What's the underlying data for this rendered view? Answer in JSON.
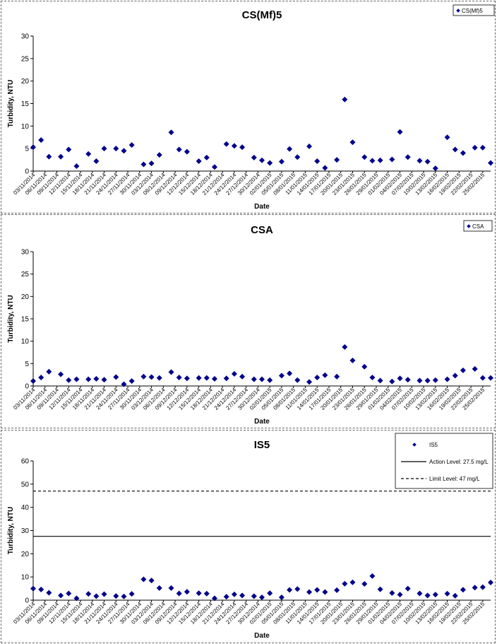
{
  "chart_data": [
    {
      "type": "scatter",
      "title": "CS(Mf)5",
      "xlabel": "Date",
      "ylabel": "Turbidity, NTU",
      "ylim": [
        0,
        30
      ],
      "yticks": [
        0,
        5,
        10,
        15,
        20,
        25,
        30
      ],
      "grid": false,
      "legend_position": "top-right",
      "x_range": [
        "03/11/2014",
        "27/02/2015"
      ],
      "x_ticks": [
        "03/11/2014",
        "06/11/2014",
        "09/11/2014",
        "12/11/2014",
        "15/11/2014",
        "18/11/2014",
        "21/11/2014",
        "24/11/2014",
        "27/11/2014",
        "30/11/2014",
        "03/12/2014",
        "06/12/2014",
        "09/12/2014",
        "12/12/2014",
        "15/12/2014",
        "18/12/2014",
        "21/12/2014",
        "24/12/2014",
        "27/12/2014",
        "30/12/2014",
        "02/01/2015",
        "05/01/2015",
        "08/01/2015",
        "11/01/2015",
        "14/01/2015",
        "17/01/2015",
        "20/01/2015",
        "23/01/2015",
        "26/01/2015",
        "29/01/2015",
        "01/02/2015",
        "04/02/2015",
        "07/02/2015",
        "10/02/2015",
        "13/02/2015",
        "16/02/2015",
        "19/02/2015",
        "22/02/2015",
        "25/02/2015"
      ],
      "series": [
        {
          "name": "CS(Mf)5",
          "color": "#00008b",
          "marker": "diamond",
          "points": [
            {
              "x": "03/11/2014",
              "y": 5.3
            },
            {
              "x": "05/11/2014",
              "y": 6.9
            },
            {
              "x": "07/11/2014",
              "y": 3.2
            },
            {
              "x": "10/11/2014",
              "y": 3.2
            },
            {
              "x": "12/11/2014",
              "y": 4.8
            },
            {
              "x": "14/11/2014",
              "y": 1.1
            },
            {
              "x": "17/11/2014",
              "y": 3.8
            },
            {
              "x": "19/11/2014",
              "y": 2.2
            },
            {
              "x": "21/11/2014",
              "y": 5.0
            },
            {
              "x": "24/11/2014",
              "y": 5.0
            },
            {
              "x": "26/11/2014",
              "y": 4.5
            },
            {
              "x": "28/11/2014",
              "y": 5.8
            },
            {
              "x": "01/12/2014",
              "y": 1.5
            },
            {
              "x": "03/12/2014",
              "y": 1.7
            },
            {
              "x": "05/12/2014",
              "y": 3.6
            },
            {
              "x": "08/12/2014",
              "y": 8.6
            },
            {
              "x": "10/12/2014",
              "y": 4.8
            },
            {
              "x": "12/12/2014",
              "y": 4.3
            },
            {
              "x": "15/12/2014",
              "y": 2.2
            },
            {
              "x": "17/12/2014",
              "y": 3.0
            },
            {
              "x": "19/12/2014",
              "y": 0.9
            },
            {
              "x": "22/12/2014",
              "y": 6.0
            },
            {
              "x": "24/12/2014",
              "y": 5.6
            },
            {
              "x": "26/12/2014",
              "y": 5.3
            },
            {
              "x": "29/12/2014",
              "y": 3.0
            },
            {
              "x": "31/12/2014",
              "y": 2.4
            },
            {
              "x": "02/01/2015",
              "y": 1.8
            },
            {
              "x": "05/01/2015",
              "y": 2.1
            },
            {
              "x": "07/01/2015",
              "y": 4.9
            },
            {
              "x": "09/01/2015",
              "y": 3.1
            },
            {
              "x": "12/01/2015",
              "y": 5.5
            },
            {
              "x": "14/01/2015",
              "y": 2.2
            },
            {
              "x": "16/01/2015",
              "y": 0.7
            },
            {
              "x": "19/01/2015",
              "y": 2.5
            },
            {
              "x": "21/01/2015",
              "y": 15.9
            },
            {
              "x": "23/01/2015",
              "y": 6.4
            },
            {
              "x": "26/01/2015",
              "y": 3.1
            },
            {
              "x": "28/01/2015",
              "y": 2.3
            },
            {
              "x": "30/01/2015",
              "y": 2.4
            },
            {
              "x": "02/02/2015",
              "y": 2.6
            },
            {
              "x": "04/02/2015",
              "y": 8.7
            },
            {
              "x": "06/02/2015",
              "y": 3.1
            },
            {
              "x": "09/02/2015",
              "y": 2.3
            },
            {
              "x": "11/02/2015",
              "y": 2.1
            },
            {
              "x": "13/02/2015",
              "y": 0.6
            },
            {
              "x": "16/02/2015",
              "y": 7.5
            },
            {
              "x": "18/02/2015",
              "y": 4.8
            },
            {
              "x": "20/02/2015",
              "y": 4.0
            },
            {
              "x": "23/02/2015",
              "y": 5.2
            },
            {
              "x": "25/02/2015",
              "y": 5.2
            },
            {
              "x": "27/02/2015",
              "y": 1.8
            }
          ]
        }
      ]
    },
    {
      "type": "scatter",
      "title": "CSA",
      "xlabel": "Date",
      "ylabel": "Turbidity, NTU",
      "ylim": [
        0,
        30
      ],
      "yticks": [
        0,
        5,
        10,
        15,
        20,
        25,
        30
      ],
      "grid": false,
      "legend_position": "top-right",
      "x_range": [
        "03/11/2014",
        "27/02/2015"
      ],
      "x_ticks": [
        "03/11/2014",
        "06/11/2014",
        "09/11/2014",
        "12/11/2014",
        "15/11/2014",
        "18/11/2014",
        "21/11/2014",
        "24/11/2014",
        "27/11/2014",
        "30/11/2014",
        "03/12/2014",
        "06/12/2014",
        "09/12/2014",
        "12/12/2014",
        "15/12/2014",
        "18/12/2014",
        "21/12/2014",
        "24/12/2014",
        "27/12/2014",
        "30/12/2014",
        "02/01/2015",
        "05/01/2015",
        "08/01/2015",
        "11/01/2015",
        "14/01/2015",
        "17/01/2015",
        "20/01/2015",
        "23/01/2015",
        "26/01/2015",
        "29/01/2015",
        "01/02/2015",
        "04/02/2015",
        "07/02/2015",
        "10/02/2015",
        "13/02/2015",
        "16/02/2015",
        "19/02/2015",
        "22/02/2015",
        "25/02/2015"
      ],
      "series": [
        {
          "name": "CSA",
          "color": "#00008b",
          "marker": "diamond",
          "points": [
            {
              "x": "03/11/2014",
              "y": 1.1
            },
            {
              "x": "05/11/2014",
              "y": 1.9
            },
            {
              "x": "07/11/2014",
              "y": 3.2
            },
            {
              "x": "10/11/2014",
              "y": 2.6
            },
            {
              "x": "12/11/2014",
              "y": 1.3
            },
            {
              "x": "14/11/2014",
              "y": 1.5
            },
            {
              "x": "17/11/2014",
              "y": 1.5
            },
            {
              "x": "19/11/2014",
              "y": 1.6
            },
            {
              "x": "21/11/2014",
              "y": 1.4
            },
            {
              "x": "24/11/2014",
              "y": 2.0
            },
            {
              "x": "26/11/2014",
              "y": 0.4
            },
            {
              "x": "28/11/2014",
              "y": 1.1
            },
            {
              "x": "01/12/2014",
              "y": 2.1
            },
            {
              "x": "03/12/2014",
              "y": 2.0
            },
            {
              "x": "05/12/2014",
              "y": 1.8
            },
            {
              "x": "08/12/2014",
              "y": 3.1
            },
            {
              "x": "10/12/2014",
              "y": 1.9
            },
            {
              "x": "12/12/2014",
              "y": 1.7
            },
            {
              "x": "15/12/2014",
              "y": 1.8
            },
            {
              "x": "17/12/2014",
              "y": 1.8
            },
            {
              "x": "19/12/2014",
              "y": 1.6
            },
            {
              "x": "22/12/2014",
              "y": 1.7
            },
            {
              "x": "24/12/2014",
              "y": 2.7
            },
            {
              "x": "26/12/2014",
              "y": 2.1
            },
            {
              "x": "29/12/2014",
              "y": 1.5
            },
            {
              "x": "31/12/2014",
              "y": 1.5
            },
            {
              "x": "02/01/2015",
              "y": 1.3
            },
            {
              "x": "05/01/2015",
              "y": 2.3
            },
            {
              "x": "07/01/2015",
              "y": 2.8
            },
            {
              "x": "09/01/2015",
              "y": 1.3
            },
            {
              "x": "12/01/2015",
              "y": 0.9
            },
            {
              "x": "14/01/2015",
              "y": 1.9
            },
            {
              "x": "16/01/2015",
              "y": 2.4
            },
            {
              "x": "19/01/2015",
              "y": 2.1
            },
            {
              "x": "21/01/2015",
              "y": 8.7
            },
            {
              "x": "23/01/2015",
              "y": 5.7
            },
            {
              "x": "26/01/2015",
              "y": 4.3
            },
            {
              "x": "28/01/2015",
              "y": 1.9
            },
            {
              "x": "30/01/2015",
              "y": 1.2
            },
            {
              "x": "02/02/2015",
              "y": 1.0
            },
            {
              "x": "04/02/2015",
              "y": 1.7
            },
            {
              "x": "06/02/2015",
              "y": 1.4
            },
            {
              "x": "09/02/2015",
              "y": 1.2
            },
            {
              "x": "11/02/2015",
              "y": 1.2
            },
            {
              "x": "13/02/2015",
              "y": 1.3
            },
            {
              "x": "16/02/2015",
              "y": 1.5
            },
            {
              "x": "18/02/2015",
              "y": 2.3
            },
            {
              "x": "20/02/2015",
              "y": 3.5
            },
            {
              "x": "23/02/2015",
              "y": 3.8
            },
            {
              "x": "25/02/2015",
              "y": 1.8
            },
            {
              "x": "27/02/2015",
              "y": 1.8
            }
          ]
        }
      ]
    },
    {
      "type": "scatter",
      "title": "IS5",
      "xlabel": "Date",
      "ylabel": "Turbidity, NTU",
      "ylim": [
        0,
        60
      ],
      "yticks": [
        0,
        10,
        20,
        30,
        40,
        50,
        60
      ],
      "grid": false,
      "legend_position": "top-right",
      "x_range": [
        "03/11/2014",
        "27/02/2015"
      ],
      "x_ticks": [
        "03/11/2014",
        "06/11/2014",
        "09/11/2014",
        "12/11/2014",
        "15/11/2014",
        "18/11/2014",
        "21/11/2014",
        "24/11/2014",
        "27/11/2014",
        "30/11/2014",
        "03/12/2014",
        "06/12/2014",
        "09/12/2014",
        "12/12/2014",
        "15/12/2014",
        "18/12/2014",
        "21/12/2014",
        "24/12/2014",
        "27/12/2014",
        "30/12/2014",
        "02/01/2015",
        "05/01/2015",
        "08/01/2015",
        "11/01/2015",
        "14/01/2015",
        "17/01/2015",
        "20/01/2015",
        "23/01/2015",
        "26/01/2015",
        "29/01/2015",
        "01/02/2015",
        "04/02/2015",
        "07/02/2015",
        "10/02/2015",
        "13/02/2015",
        "16/02/2015",
        "19/02/2015",
        "22/02/2015",
        "25/02/2015"
      ],
      "series": [
        {
          "name": "IS5",
          "color": "#00008b",
          "marker": "diamond",
          "points": [
            {
              "x": "03/11/2014",
              "y": 5.0
            },
            {
              "x": "05/11/2014",
              "y": 4.6
            },
            {
              "x": "07/11/2014",
              "y": 3.2
            },
            {
              "x": "10/11/2014",
              "y": 2.0
            },
            {
              "x": "12/11/2014",
              "y": 2.9
            },
            {
              "x": "14/11/2014",
              "y": 0.8
            },
            {
              "x": "17/11/2014",
              "y": 2.7
            },
            {
              "x": "19/11/2014",
              "y": 1.7
            },
            {
              "x": "21/11/2014",
              "y": 2.6
            },
            {
              "x": "24/11/2014",
              "y": 1.8
            },
            {
              "x": "26/11/2014",
              "y": 1.6
            },
            {
              "x": "28/11/2014",
              "y": 2.7
            },
            {
              "x": "01/12/2014",
              "y": 9.0
            },
            {
              "x": "03/12/2014",
              "y": 8.5
            },
            {
              "x": "05/12/2014",
              "y": 5.2
            },
            {
              "x": "08/12/2014",
              "y": 5.2
            },
            {
              "x": "10/12/2014",
              "y": 2.9
            },
            {
              "x": "12/12/2014",
              "y": 3.6
            },
            {
              "x": "15/12/2014",
              "y": 3.0
            },
            {
              "x": "17/12/2014",
              "y": 2.8
            },
            {
              "x": "19/12/2014",
              "y": 0.8
            },
            {
              "x": "22/12/2014",
              "y": 1.5
            },
            {
              "x": "24/12/2014",
              "y": 2.5
            },
            {
              "x": "26/12/2014",
              "y": 2.0
            },
            {
              "x": "29/12/2014",
              "y": 1.7
            },
            {
              "x": "31/12/2014",
              "y": 1.2
            },
            {
              "x": "02/01/2015",
              "y": 3.0
            },
            {
              "x": "05/01/2015",
              "y": 1.2
            },
            {
              "x": "07/01/2015",
              "y": 4.4
            },
            {
              "x": "09/01/2015",
              "y": 4.8
            },
            {
              "x": "12/01/2015",
              "y": 3.5
            },
            {
              "x": "14/01/2015",
              "y": 4.4
            },
            {
              "x": "16/01/2015",
              "y": 3.5
            },
            {
              "x": "19/01/2015",
              "y": 4.3
            },
            {
              "x": "21/01/2015",
              "y": 7.1
            },
            {
              "x": "23/01/2015",
              "y": 7.7
            },
            {
              "x": "26/01/2015",
              "y": 7.0
            },
            {
              "x": "28/01/2015",
              "y": 10.4
            },
            {
              "x": "30/01/2015",
              "y": 4.7
            },
            {
              "x": "02/02/2015",
              "y": 3.1
            },
            {
              "x": "04/02/2015",
              "y": 2.4
            },
            {
              "x": "06/02/2015",
              "y": 5.0
            },
            {
              "x": "09/02/2015",
              "y": 2.9
            },
            {
              "x": "11/02/2015",
              "y": 2.0
            },
            {
              "x": "13/02/2015",
              "y": 2.4
            },
            {
              "x": "16/02/2015",
              "y": 2.8
            },
            {
              "x": "18/02/2015",
              "y": 1.9
            },
            {
              "x": "20/02/2015",
              "y": 4.5
            },
            {
              "x": "23/02/2015",
              "y": 5.4
            },
            {
              "x": "25/02/2015",
              "y": 5.6
            },
            {
              "x": "27/02/2015",
              "y": 7.6
            }
          ]
        }
      ],
      "reference_lines": [
        {
          "name": "Action Level: 27.5 mg/L",
          "y": 27.5,
          "style": "solid",
          "color": "#000000"
        },
        {
          "name": "Limit Level: 47 mg/L",
          "y": 47,
          "style": "dashed",
          "color": "#000000"
        }
      ]
    }
  ]
}
